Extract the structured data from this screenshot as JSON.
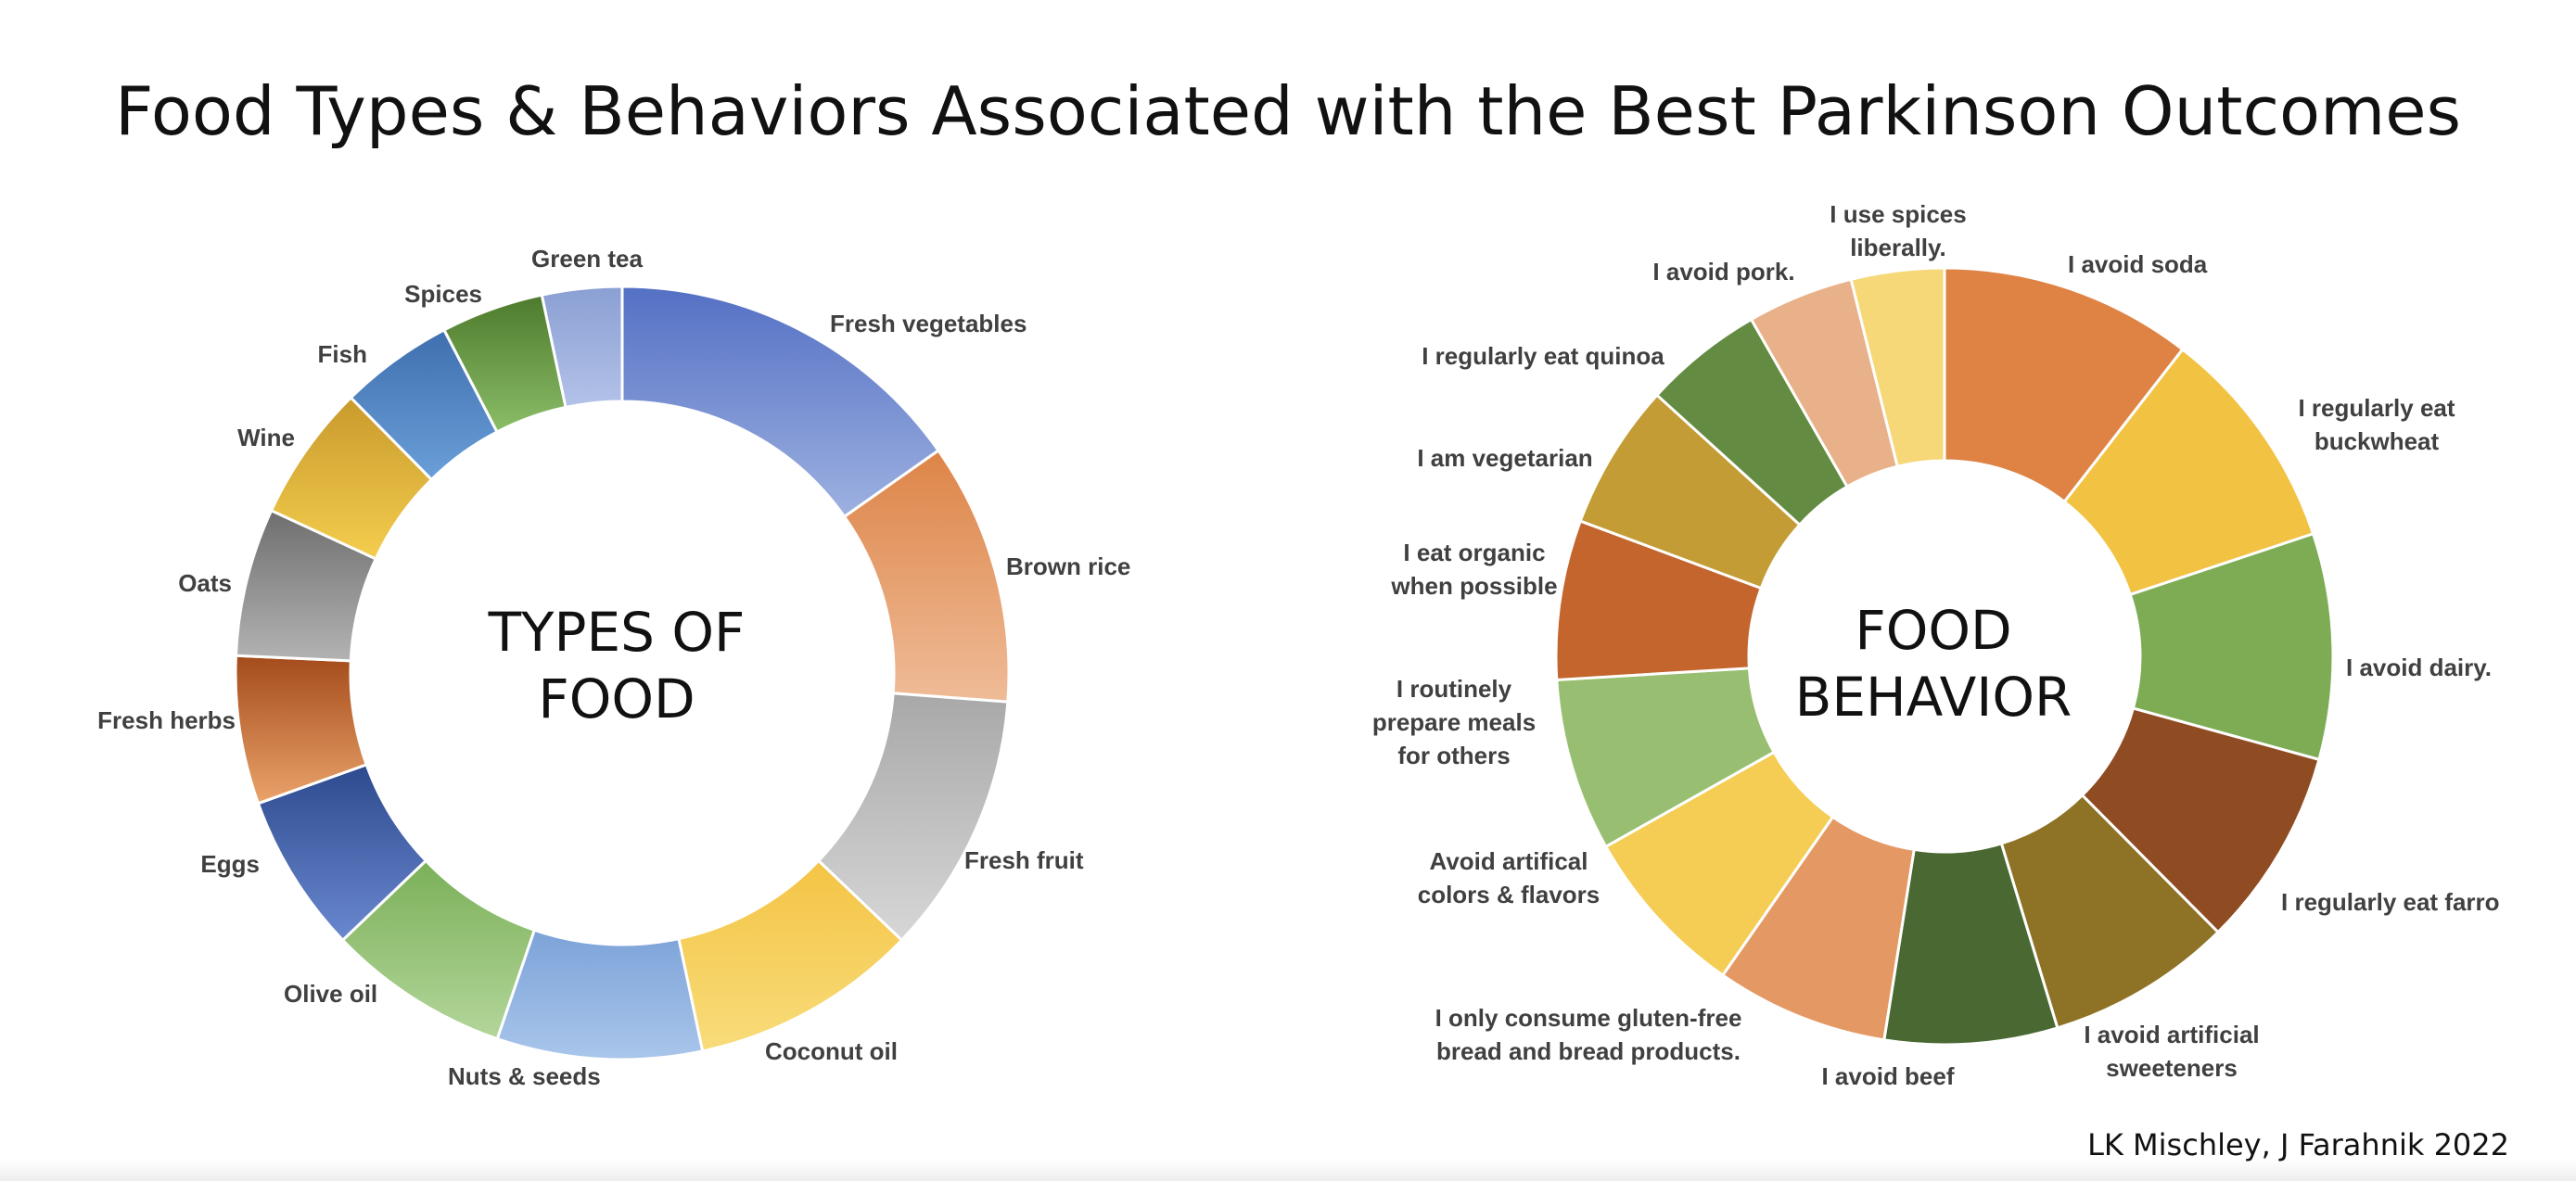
{
  "title": "Food Types & Behaviors Associated with the Best Parkinson Outcomes",
  "credit": "LK Mischley, J Farahnik 2022",
  "chart_data": [
    {
      "type": "donut",
      "center_label": [
        "TYPES OF",
        "FOOD"
      ],
      "slices": [
        {
          "label": "Fresh vegetables",
          "value": 16,
          "color_top": "#5470c4",
          "color_bottom": "#9db1e0"
        },
        {
          "label": "Brown rice",
          "value": 11.5,
          "color_top": "#dd8447",
          "color_bottom": "#efbc98"
        },
        {
          "label": "Fresh fruit",
          "value": 11.5,
          "color_top": "#a8a8a8",
          "color_bottom": "#d7d7d7"
        },
        {
          "label": "Coconut oil",
          "value": 10,
          "color_top": "#f4c445",
          "color_bottom": "#f8dc7a"
        },
        {
          "label": "Nuts & seeds",
          "value": 9,
          "color_top": "#7ca2d8",
          "color_bottom": "#a9c6eb"
        },
        {
          "label": "Olive oil",
          "value": 8,
          "color_top": "#7bb058",
          "color_bottom": "#b3d69b"
        },
        {
          "label": "Eggs",
          "value": 7,
          "color_top": "#2d4a8e",
          "color_bottom": "#6a88cf"
        },
        {
          "label": "Fresh herbs",
          "value": 6.5,
          "color_top": "#a44b1b",
          "color_bottom": "#eaa36a"
        },
        {
          "label": "Oats",
          "value": 6.5,
          "color_top": "#6e6e6e",
          "color_bottom": "#b3b3b3"
        },
        {
          "label": "Wine",
          "value": 6,
          "color_top": "#c89a2c",
          "color_bottom": "#f4cd4e"
        },
        {
          "label": "Fish",
          "value": 5,
          "color_top": "#3f6fae",
          "color_bottom": "#6a9fd9"
        },
        {
          "label": "Spices",
          "value": 4.5,
          "color_top": "#4d7a2c",
          "color_bottom": "#8bbd68"
        },
        {
          "label": "Green tea",
          "value": 3.5,
          "color_top": "#8a9fd3",
          "color_bottom": "#b3c2e8"
        }
      ]
    },
    {
      "type": "pie",
      "center_label": [
        "FOOD",
        "BEHAVIOR"
      ],
      "slices": [
        {
          "label": "I avoid soda",
          "value": 9.5,
          "color": "#de8344"
        },
        {
          "label": "I regularly eat buckwheat",
          "value": 8.5,
          "color": "#f2c243"
        },
        {
          "label": "I avoid dairy.",
          "value": 8.5,
          "color": "#7eac55"
        },
        {
          "label": "I regularly eat farro",
          "value": 7.5,
          "color": "#8f4b22"
        },
        {
          "label": "I avoid artificial sweeteners",
          "value": 7,
          "color": "#8e7326"
        },
        {
          "label": "I avoid beef",
          "value": 6.5,
          "color": "#4a6932"
        },
        {
          "label": "I only consume gluten-free bread and bread products.",
          "value": 6.5,
          "color": "#e49965"
        },
        {
          "label": "Avoid artifical colors & flavors",
          "value": 6.5,
          "color": "#f5cd54"
        },
        {
          "label": "I routinely prepare meals for others",
          "value": 6.5,
          "color": "#98bf71"
        },
        {
          "label": "I eat organic when possible",
          "value": 6,
          "color": "#c4652d"
        },
        {
          "label": "I am vegetarian",
          "value": 5.5,
          "color": "#c49c35"
        },
        {
          "label": "I regularly eat quinoa",
          "value": 4.5,
          "color": "#638b41"
        },
        {
          "label": "I avoid pork.",
          "value": 4,
          "color": "#e9b189"
        },
        {
          "label": "I use spices liberally.",
          "value": 3.5,
          "color": "#f6d878"
        }
      ]
    }
  ]
}
